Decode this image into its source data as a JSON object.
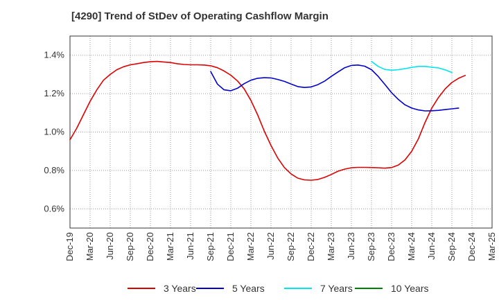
{
  "chart_data": {
    "type": "line",
    "title": "[4290]  Trend of StDev of Operating Cashflow Margin",
    "xlabel": "",
    "ylabel": "",
    "x_ticks": [
      "Dec-19",
      "Mar-20",
      "Jun-20",
      "Sep-20",
      "Dec-20",
      "Mar-21",
      "Jun-21",
      "Sep-21",
      "Dec-21",
      "Mar-22",
      "Jun-22",
      "Sep-22",
      "Dec-22",
      "Mar-23",
      "Jun-23",
      "Sep-23",
      "Dec-23",
      "Mar-24",
      "Jun-24",
      "Sep-24",
      "Dec-24",
      "Mar-25"
    ],
    "y_ticks": [
      0.6,
      0.8,
      1.0,
      1.2,
      1.4
    ],
    "y_tick_labels": [
      "0.6%",
      "0.8%",
      "1.0%",
      "1.2%",
      "1.4%"
    ],
    "ylim": [
      0.5,
      1.5
    ],
    "grid": true,
    "legend_position": "bottom",
    "series": [
      {
        "name": "3 Years",
        "color": "#dd0000",
        "start_index": 0,
        "values": [
          0.96,
          1.02,
          1.09,
          1.16,
          1.22,
          1.27,
          1.3,
          1.325,
          1.34,
          1.35,
          1.356,
          1.362,
          1.366,
          1.368,
          1.365,
          1.362,
          1.356,
          1.352,
          1.35,
          1.35,
          1.349,
          1.345,
          1.335,
          1.318,
          1.296,
          1.266,
          1.225,
          1.165,
          1.09,
          1.005,
          0.93,
          0.865,
          0.815,
          0.782,
          0.76,
          0.751,
          0.749,
          0.753,
          0.764,
          0.779,
          0.796,
          0.807,
          0.814,
          0.816,
          0.816,
          0.815,
          0.814,
          0.812,
          0.815,
          0.828,
          0.855,
          0.9,
          0.965,
          1.05,
          1.125,
          1.18,
          1.225,
          1.258,
          1.28,
          1.295
        ]
      },
      {
        "name": "5 Years",
        "color": "#0000cc",
        "start_index": 21,
        "values": [
          1.315,
          1.25,
          1.22,
          1.215,
          1.228,
          1.252,
          1.27,
          1.28,
          1.283,
          1.282,
          1.274,
          1.264,
          1.25,
          1.237,
          1.232,
          1.235,
          1.247,
          1.265,
          1.29,
          1.313,
          1.335,
          1.347,
          1.349,
          1.343,
          1.325,
          1.29,
          1.248,
          1.205,
          1.17,
          1.142,
          1.125,
          1.115,
          1.11,
          1.111,
          1.113,
          1.117,
          1.121,
          1.125
        ]
      },
      {
        "name": "7 Years",
        "color": "#00e5ee",
        "start_index": 45,
        "values": [
          1.368,
          1.342,
          1.326,
          1.322,
          1.325,
          1.33,
          1.337,
          1.342,
          1.342,
          1.338,
          1.334,
          1.324,
          1.31
        ]
      },
      {
        "name": "10 Years",
        "color": "#008000",
        "start_index": 0,
        "values": []
      }
    ]
  }
}
